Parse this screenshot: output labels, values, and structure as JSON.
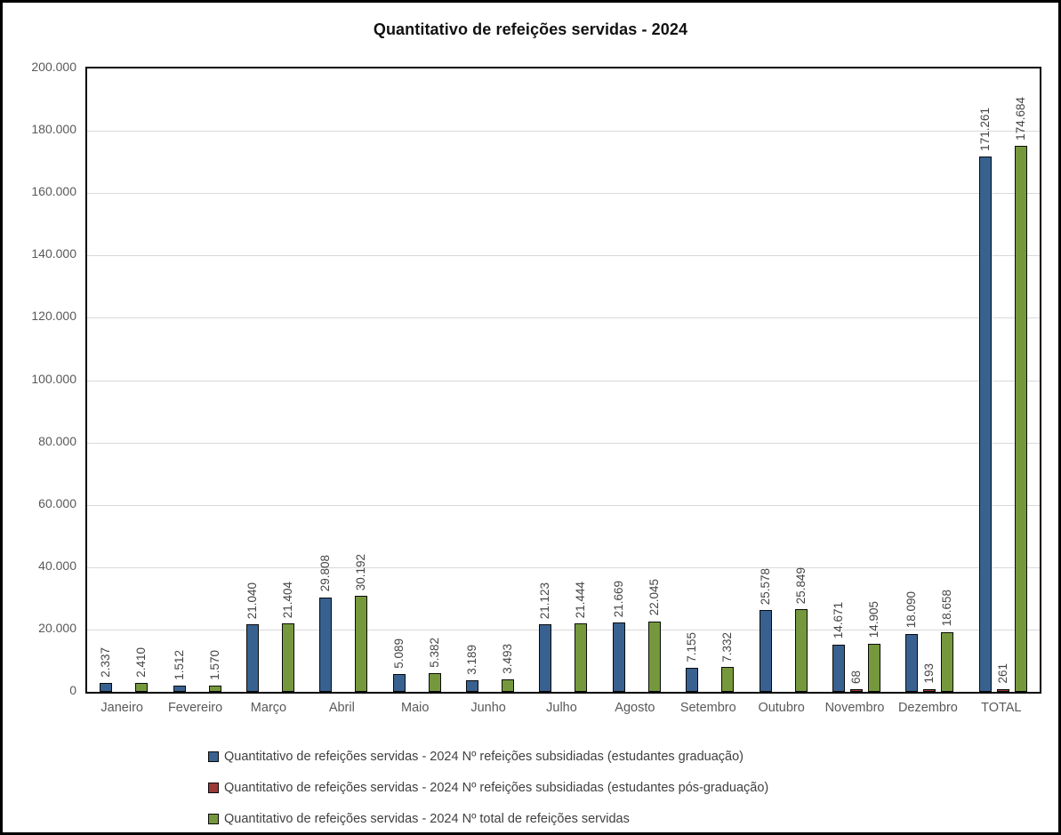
{
  "chart_data": {
    "type": "bar",
    "title": "Quantitativo de refeições servidas - 2024",
    "categories": [
      "Janeiro",
      "Fevereiro",
      "Março",
      "Abril",
      "Maio",
      "Junho",
      "Julho",
      "Agosto",
      "Setembro",
      "Outubro",
      "Novembro",
      "Dezembro",
      "TOTAL"
    ],
    "series": [
      {
        "name": "Quantitativo de refeições servidas - 2024 Nº refeições subsidiadas (estudantes graduação)",
        "color": "#38618F",
        "values": [
          2337,
          1512,
          21040,
          29808,
          5089,
          3189,
          21123,
          21669,
          7155,
          25578,
          14671,
          18090,
          171261
        ],
        "labels": [
          "2.337",
          "1.512",
          "21.040",
          "29.808",
          "5.089",
          "3.189",
          "21.123",
          "21.669",
          "7.155",
          "25.578",
          "14.671",
          "18.090",
          "171.261"
        ]
      },
      {
        "name": "Quantitativo de refeições servidas - 2024 Nº refeições subsidiadas (estudantes pós-graduação)",
        "color": "#9C3A38",
        "values": [
          null,
          null,
          null,
          null,
          null,
          null,
          null,
          null,
          null,
          null,
          68,
          193,
          261
        ],
        "labels": [
          null,
          null,
          null,
          null,
          null,
          null,
          null,
          null,
          null,
          null,
          "68",
          "193",
          "261"
        ]
      },
      {
        "name": "Quantitativo de refeições servidas - 2024 Nº total de refeições servidas",
        "color": "#76983D",
        "values": [
          2410,
          1570,
          21404,
          30192,
          5382,
          3493,
          21444,
          22045,
          7332,
          25849,
          14905,
          18658,
          174684
        ],
        "labels": [
          "2.410",
          "1.570",
          "21.404",
          "30.192",
          "5.382",
          "3.493",
          "21.444",
          "22.045",
          "7.332",
          "25.849",
          "14.905",
          "18.658",
          "174.684"
        ]
      }
    ],
    "ylim": [
      0,
      200000
    ],
    "y_tick_interval": 20000,
    "y_tick_labels": [
      "200.000",
      "180.000",
      "160.000",
      "140.000",
      "120.000",
      "100.000",
      "80.000",
      "60.000",
      "40.000",
      "20.000",
      "0"
    ],
    "grid": true,
    "legend_position": "bottom-left"
  }
}
